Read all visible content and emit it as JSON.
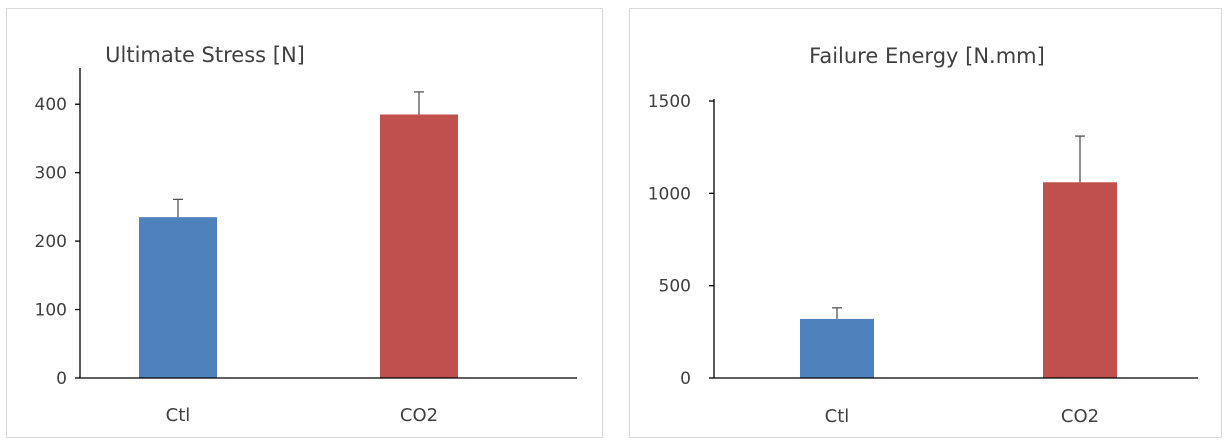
{
  "chart_data": [
    {
      "type": "bar",
      "title": "Ultimate Stress [N]",
      "categories": [
        "Ctl",
        "CO2"
      ],
      "values": [
        235,
        385
      ],
      "error_upper": [
        261,
        418
      ],
      "colors": [
        "#4f81bd",
        "#c0504d"
      ],
      "ylim": [
        0,
        450
      ],
      "yticks": [
        0,
        100,
        200,
        300,
        400
      ],
      "ytick_labels": [
        "0",
        "100",
        "200",
        "300",
        "400"
      ],
      "xlabel": "",
      "ylabel": "",
      "grid": false,
      "legend": "none"
    },
    {
      "type": "bar",
      "title": "Failure Energy [N.mm]",
      "categories": [
        "Ctl",
        "CO2"
      ],
      "values": [
        320,
        1060
      ],
      "error_upper": [
        380,
        1310
      ],
      "colors": [
        "#4f81bd",
        "#c0504d"
      ],
      "ylim": [
        0,
        1500
      ],
      "yticks": [
        0,
        500,
        1000,
        1500
      ],
      "ytick_labels": [
        "0",
        "500",
        "1000",
        "1500"
      ],
      "xlabel": "",
      "ylabel": "",
      "grid": false,
      "legend": "none"
    }
  ]
}
